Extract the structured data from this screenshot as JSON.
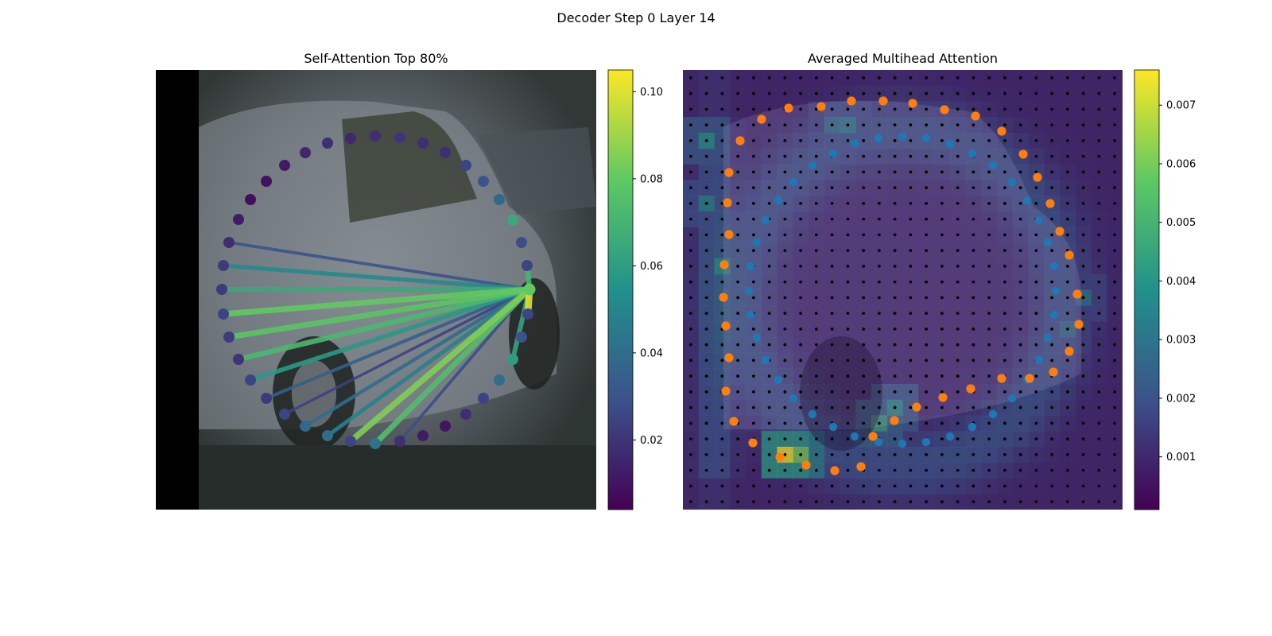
{
  "figure": {
    "suptitle": "Decoder Step 0 Layer 14"
  },
  "panels": {
    "left": {
      "title": "Self-Attention Top 80%"
    },
    "right": {
      "title": "Averaged Multihead Attention"
    }
  },
  "colors": {
    "background_image_tone": "#5b6167",
    "reference_points": "#1f77b4",
    "predicted_points": "#ff7f0e",
    "grid_points": "#000000",
    "viridis": [
      "#440154",
      "#3b528b",
      "#21918c",
      "#5ec962",
      "#fde725"
    ]
  },
  "chart_data": [
    {
      "type": "scatter",
      "title": "Self-Attention Top 80%",
      "description_kind": "polygon vertices over image, colored by attention weight, with lines from query vertex",
      "query_vertex_index": 17,
      "vertices": [
        {
          "x": 300,
          "y": 276,
          "w": 0.012
        },
        {
          "x": 315,
          "y": 251,
          "w": 0.008
        },
        {
          "x": 335,
          "y": 228,
          "w": 0.009
        },
        {
          "x": 358,
          "y": 208,
          "w": 0.012
        },
        {
          "x": 384,
          "y": 192,
          "w": 0.016
        },
        {
          "x": 412,
          "y": 180,
          "w": 0.018
        },
        {
          "x": 441,
          "y": 174,
          "w": 0.016
        },
        {
          "x": 472,
          "y": 171,
          "w": 0.018
        },
        {
          "x": 503,
          "y": 173,
          "w": 0.02
        },
        {
          "x": 532,
          "y": 180,
          "w": 0.018
        },
        {
          "x": 560,
          "y": 192,
          "w": 0.018
        },
        {
          "x": 586,
          "y": 208,
          "w": 0.025
        },
        {
          "x": 608,
          "y": 228,
          "w": 0.03
        },
        {
          "x": 628,
          "y": 251,
          "w": 0.038
        },
        {
          "x": 645,
          "y": 277,
          "w": 0.065
        },
        {
          "x": 656,
          "y": 305,
          "w": 0.028
        },
        {
          "x": 663,
          "y": 334,
          "w": 0.025
        },
        {
          "x": 666,
          "y": 364,
          "w": 0.08
        },
        {
          "x": 664,
          "y": 395,
          "w": 0.025
        },
        {
          "x": 656,
          "y": 424,
          "w": 0.03
        },
        {
          "x": 645,
          "y": 452,
          "w": 0.06
        },
        {
          "x": 628,
          "y": 478,
          "w": 0.04
        },
        {
          "x": 608,
          "y": 501,
          "w": 0.025
        },
        {
          "x": 586,
          "y": 521,
          "w": 0.018
        },
        {
          "x": 560,
          "y": 536,
          "w": 0.01
        },
        {
          "x": 532,
          "y": 548,
          "w": 0.012
        },
        {
          "x": 503,
          "y": 555,
          "w": 0.018
        },
        {
          "x": 472,
          "y": 558,
          "w": 0.042
        },
        {
          "x": 441,
          "y": 555,
          "w": 0.025
        },
        {
          "x": 412,
          "y": 548,
          "w": 0.04
        },
        {
          "x": 384,
          "y": 536,
          "w": 0.038
        },
        {
          "x": 358,
          "y": 521,
          "w": 0.025
        },
        {
          "x": 335,
          "y": 501,
          "w": 0.022
        },
        {
          "x": 315,
          "y": 478,
          "w": 0.025
        },
        {
          "x": 300,
          "y": 452,
          "w": 0.02
        },
        {
          "x": 288,
          "y": 424,
          "w": 0.022
        },
        {
          "x": 281,
          "y": 395,
          "w": 0.025
        },
        {
          "x": 279,
          "y": 364,
          "w": 0.022
        },
        {
          "x": 281,
          "y": 334,
          "w": 0.022
        },
        {
          "x": 288,
          "y": 305,
          "w": 0.018
        }
      ],
      "attention_edges": [
        {
          "to": 18,
          "w": 0.1
        },
        {
          "to": 28,
          "w": 0.085
        },
        {
          "to": 36,
          "w": 0.08
        },
        {
          "to": 35,
          "w": 0.078
        },
        {
          "to": 27,
          "w": 0.075
        },
        {
          "to": 34,
          "w": 0.072
        },
        {
          "to": 16,
          "w": 0.07
        },
        {
          "to": 37,
          "w": 0.065
        },
        {
          "to": 20,
          "w": 0.062
        },
        {
          "to": 33,
          "w": 0.058
        },
        {
          "to": 38,
          "w": 0.052
        },
        {
          "to": 29,
          "w": 0.048
        },
        {
          "to": 30,
          "w": 0.04
        },
        {
          "to": 32,
          "w": 0.035
        },
        {
          "to": 39,
          "w": 0.03
        },
        {
          "to": 26,
          "w": 0.028
        },
        {
          "to": 31,
          "w": 0.024
        }
      ],
      "colorbar": {
        "min": 0.004,
        "max": 0.105,
        "ticks": [
          0.02,
          0.04,
          0.06,
          0.08,
          0.1
        ],
        "tick_labels": [
          "0.02",
          "0.04",
          "0.06",
          "0.08",
          "0.10"
        ]
      }
    },
    {
      "type": "heatmap",
      "title": "Averaged Multihead Attention",
      "grid": {
        "rows": 28,
        "cols": 28
      },
      "hotspots": [
        {
          "col": 6,
          "row": 24,
          "v": 0.0075
        },
        {
          "col": 7,
          "row": 24,
          "v": 0.006
        },
        {
          "col": 1,
          "row": 4,
          "v": 0.004
        },
        {
          "col": 2,
          "row": 12,
          "v": 0.004
        },
        {
          "col": 1,
          "row": 8,
          "v": 0.0035
        },
        {
          "col": 12,
          "row": 22,
          "v": 0.0045
        },
        {
          "col": 13,
          "row": 21,
          "v": 0.004
        },
        {
          "col": 10,
          "row": 3,
          "v": 0.0035
        },
        {
          "col": 9,
          "row": 3,
          "v": 0.003
        },
        {
          "col": 24,
          "row": 16,
          "v": 0.003
        },
        {
          "col": 25,
          "row": 14,
          "v": 0.003
        }
      ],
      "reference_points": [
        {
          "x": 1048,
          "y": 193
        },
        {
          "x": 1075,
          "y": 180
        },
        {
          "x": 1105,
          "y": 174
        },
        {
          "x": 1135,
          "y": 172
        },
        {
          "x": 1165,
          "y": 174
        },
        {
          "x": 1195,
          "y": 181
        },
        {
          "x": 1223,
          "y": 193
        },
        {
          "x": 1249,
          "y": 208
        },
        {
          "x": 1273,
          "y": 229
        },
        {
          "x": 1292,
          "y": 252
        },
        {
          "x": 1307,
          "y": 277
        },
        {
          "x": 1318,
          "y": 305
        },
        {
          "x": 1326,
          "y": 335
        },
        {
          "x": 1328,
          "y": 366
        },
        {
          "x": 1326,
          "y": 396
        },
        {
          "x": 1318,
          "y": 425
        },
        {
          "x": 1307,
          "y": 453
        },
        {
          "x": 1292,
          "y": 478
        },
        {
          "x": 1273,
          "y": 501
        },
        {
          "x": 1249,
          "y": 521
        },
        {
          "x": 1223,
          "y": 537
        },
        {
          "x": 1195,
          "y": 549
        },
        {
          "x": 1165,
          "y": 556
        },
        {
          "x": 1135,
          "y": 558
        },
        {
          "x": 1105,
          "y": 556
        },
        {
          "x": 1075,
          "y": 549
        },
        {
          "x": 1048,
          "y": 537
        },
        {
          "x": 1022,
          "y": 521
        },
        {
          "x": 998,
          "y": 501
        },
        {
          "x": 979,
          "y": 478
        },
        {
          "x": 963,
          "y": 453
        },
        {
          "x": 952,
          "y": 425
        },
        {
          "x": 944,
          "y": 396
        },
        {
          "x": 942,
          "y": 366
        },
        {
          "x": 944,
          "y": 335
        },
        {
          "x": 952,
          "y": 305
        },
        {
          "x": 963,
          "y": 277
        },
        {
          "x": 979,
          "y": 252
        },
        {
          "x": 998,
          "y": 229
        },
        {
          "x": 1022,
          "y": 208
        }
      ],
      "predicted_points": [
        {
          "x": 958,
          "y": 150
        },
        {
          "x": 992,
          "y": 136
        },
        {
          "x": 1033,
          "y": 134
        },
        {
          "x": 1071,
          "y": 127
        },
        {
          "x": 1111,
          "y": 127
        },
        {
          "x": 1148,
          "y": 130
        },
        {
          "x": 1188,
          "y": 138
        },
        {
          "x": 1227,
          "y": 146
        },
        {
          "x": 1260,
          "y": 165
        },
        {
          "x": 1287,
          "y": 194
        },
        {
          "x": 1305,
          "y": 223
        },
        {
          "x": 1321,
          "y": 256
        },
        {
          "x": 1333,
          "y": 291
        },
        {
          "x": 1345,
          "y": 321
        },
        {
          "x": 1355,
          "y": 370
        },
        {
          "x": 1357,
          "y": 408
        },
        {
          "x": 1345,
          "y": 442
        },
        {
          "x": 1325,
          "y": 468
        },
        {
          "x": 1295,
          "y": 476
        },
        {
          "x": 1260,
          "y": 476
        },
        {
          "x": 1221,
          "y": 489
        },
        {
          "x": 1186,
          "y": 500
        },
        {
          "x": 1153,
          "y": 512
        },
        {
          "x": 1125,
          "y": 529
        },
        {
          "x": 1098,
          "y": 549
        },
        {
          "x": 1083,
          "y": 587
        },
        {
          "x": 1050,
          "y": 592
        },
        {
          "x": 1014,
          "y": 585
        },
        {
          "x": 981,
          "y": 575
        },
        {
          "x": 947,
          "y": 557
        },
        {
          "x": 923,
          "y": 530
        },
        {
          "x": 913,
          "y": 492
        },
        {
          "x": 917,
          "y": 450
        },
        {
          "x": 913,
          "y": 410
        },
        {
          "x": 910,
          "y": 374
        },
        {
          "x": 911,
          "y": 333
        },
        {
          "x": 917,
          "y": 295
        },
        {
          "x": 915,
          "y": 255
        },
        {
          "x": 917,
          "y": 217
        },
        {
          "x": 931,
          "y": 177
        }
      ],
      "colorbar": {
        "min": 0.0001,
        "max": 0.0076,
        "ticks": [
          0.001,
          0.002,
          0.003,
          0.004,
          0.005,
          0.006,
          0.007
        ],
        "tick_labels": [
          "0.001",
          "0.002",
          "0.003",
          "0.004",
          "0.005",
          "0.006",
          "0.007"
        ]
      }
    }
  ]
}
